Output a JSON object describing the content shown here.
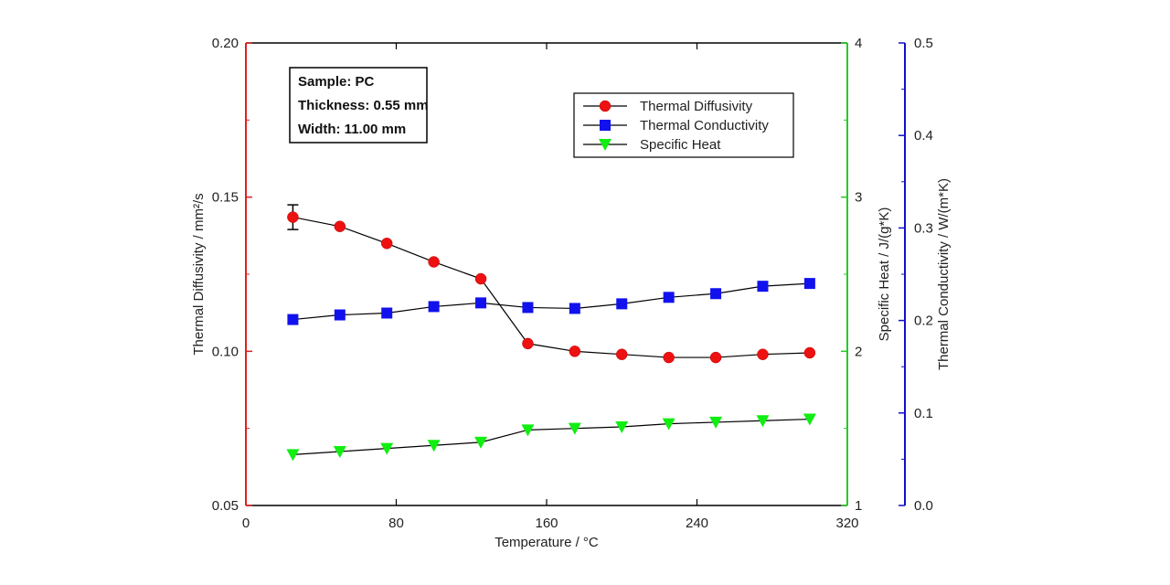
{
  "chart_data": {
    "type": "line",
    "x_axis": {
      "label": "Temperature / °C",
      "range": [
        0,
        320
      ],
      "ticks": [
        0,
        80,
        160,
        240,
        320
      ]
    },
    "y_axes": [
      {
        "id": "diffusivity",
        "side": "left",
        "label": "Thermal Diffusivity / mm²/s",
        "range": [
          0.05,
          0.2
        ],
        "ticks": [
          "0.05",
          "0.10",
          "0.15",
          "0.20"
        ],
        "color": "#e02020"
      },
      {
        "id": "specific_heat",
        "side": "right-inner",
        "label": "Specific Heat / J/(g*K)",
        "range": [
          1,
          4
        ],
        "ticks": [
          "1",
          "2",
          "3",
          "4"
        ],
        "color": "#22cc22"
      },
      {
        "id": "conductivity",
        "side": "right-outer",
        "label": "Thermal Conductivity / W/(m*K)",
        "range": [
          0,
          0.5
        ],
        "ticks": [
          "0.0",
          "0.1",
          "0.2",
          "0.3",
          "0.4",
          "0.5"
        ],
        "color": "#1010cc"
      }
    ],
    "series": [
      {
        "name": "Thermal Diffusivity",
        "axis": "diffusivity",
        "marker": "circle",
        "color": "#ee1111",
        "x": [
          25,
          50,
          75,
          100,
          125,
          150,
          175,
          200,
          225,
          250,
          275,
          300
        ],
        "y": [
          0.1435,
          0.1405,
          0.135,
          0.129,
          0.1235,
          0.1025,
          0.1,
          0.099,
          0.098,
          0.098,
          0.099,
          0.0995
        ],
        "error": [
          0.004,
          0,
          0,
          0,
          0,
          0,
          0,
          0,
          0,
          0,
          0,
          0
        ]
      },
      {
        "name": "Thermal Conductivity",
        "axis": "conductivity",
        "marker": "square",
        "color": "#1111ee",
        "x": [
          25,
          50,
          75,
          100,
          125,
          150,
          175,
          200,
          225,
          250,
          275,
          300
        ],
        "y": [
          0.201,
          0.206,
          0.208,
          0.215,
          0.219,
          0.214,
          0.213,
          0.218,
          0.225,
          0.229,
          0.237,
          0.24
        ]
      },
      {
        "name": "Specific Heat",
        "axis": "specific_heat",
        "marker": "triangle-down",
        "color": "#11ee11",
        "x": [
          25,
          50,
          75,
          100,
          125,
          150,
          175,
          200,
          225,
          250,
          275,
          300
        ],
        "y": [
          1.33,
          1.35,
          1.37,
          1.39,
          1.41,
          1.49,
          1.5,
          1.51,
          1.53,
          1.54,
          1.55,
          1.56
        ]
      }
    ],
    "legend": {
      "placement": "top-right",
      "entries": [
        "Thermal Diffusivity",
        "Thermal Conductivity",
        "Specific Heat"
      ]
    },
    "info_box": {
      "placement": "top-left",
      "lines": [
        "Sample: PC",
        "Thickness: 0.55 mm",
        "Width: 11.00 mm"
      ]
    },
    "grid": false
  }
}
